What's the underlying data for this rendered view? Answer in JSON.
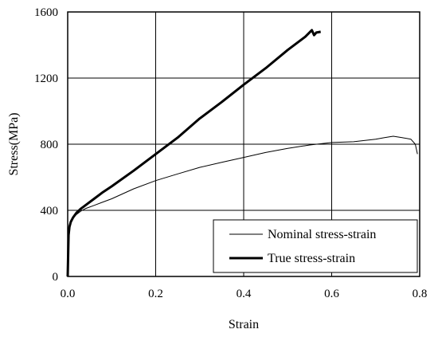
{
  "chart_data": {
    "type": "line",
    "title": "",
    "xlabel": "Strain",
    "ylabel": "Stress(MPa)",
    "xlim": [
      0,
      0.8
    ],
    "ylim": [
      0,
      1600
    ],
    "x_ticks": [
      "0.0",
      "0.2",
      "0.4",
      "0.6",
      "0.8"
    ],
    "y_ticks": [
      "0",
      "400",
      "800",
      "1200",
      "1600"
    ],
    "grid": true,
    "legend_position": "bottom-right",
    "series": [
      {
        "name": "Nominal stress-strain",
        "color": "#000000",
        "style": "thin",
        "x": [
          0.0,
          0.002,
          0.004,
          0.007,
          0.012,
          0.02,
          0.03,
          0.04,
          0.06,
          0.08,
          0.1,
          0.15,
          0.2,
          0.25,
          0.3,
          0.35,
          0.4,
          0.45,
          0.5,
          0.55,
          0.6,
          0.65,
          0.7,
          0.72,
          0.74,
          0.76,
          0.78,
          0.79,
          0.795
        ],
        "y": [
          0,
          250,
          300,
          330,
          355,
          375,
          395,
          410,
          430,
          450,
          470,
          530,
          580,
          620,
          660,
          690,
          720,
          750,
          775,
          795,
          810,
          815,
          830,
          840,
          848,
          840,
          830,
          800,
          740
        ]
      },
      {
        "name": "True stress-strain",
        "color": "#000000",
        "style": "thick",
        "x": [
          0.0,
          0.002,
          0.004,
          0.007,
          0.012,
          0.02,
          0.03,
          0.04,
          0.06,
          0.08,
          0.1,
          0.15,
          0.2,
          0.25,
          0.3,
          0.35,
          0.4,
          0.45,
          0.5,
          0.54,
          0.555,
          0.56,
          0.565,
          0.575
        ],
        "y": [
          0,
          250,
          300,
          330,
          355,
          385,
          410,
          430,
          470,
          510,
          545,
          640,
          740,
          840,
          955,
          1055,
          1160,
          1260,
          1370,
          1450,
          1490,
          1460,
          1475,
          1480
        ]
      }
    ]
  }
}
